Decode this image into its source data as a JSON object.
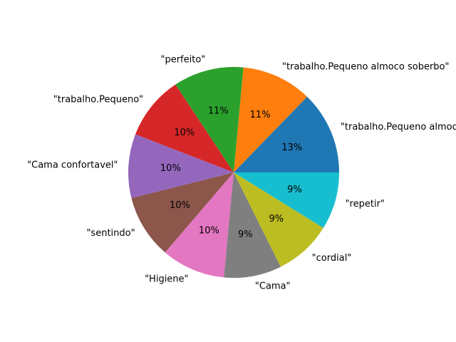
{
  "chart_data": {
    "type": "pie",
    "start_angle_deg": 0,
    "direction": "counterclockwise",
    "slices": [
      {
        "label": "\"trabalho.Pequeno almoco soberbo\"",
        "value": 13,
        "pct_label": "13%",
        "color": "#1f77b4"
      },
      {
        "label": "\"trabalho.Pequeno almoco soberbo\"",
        "value": 11,
        "pct_label": "11%",
        "color": "#ff7f0e"
      },
      {
        "label": "\"perfeito\"",
        "value": 11,
        "pct_label": "11%",
        "color": "#2ca02c"
      },
      {
        "label": "\"trabalho.Pequeno\"",
        "value": 10,
        "pct_label": "10%",
        "color": "#d62728"
      },
      {
        "label": "\"Cama confortavel\"",
        "value": 10,
        "pct_label": "10%",
        "color": "#9467bd"
      },
      {
        "label": "\"sentindo\"",
        "value": 10,
        "pct_label": "10%",
        "color": "#8c564b"
      },
      {
        "label": "\"Higiene\"",
        "value": 10,
        "pct_label": "10%",
        "color": "#e377c2"
      },
      {
        "label": "\"Cama\"",
        "value": 9,
        "pct_label": "9%",
        "color": "#7f7f7f"
      },
      {
        "label": "\"cordial\"",
        "value": 9,
        "pct_label": "9%",
        "color": "#bcbd22"
      },
      {
        "label": "\"repetir\"",
        "value": 9,
        "pct_label": "9%",
        "color": "#17becf"
      }
    ]
  }
}
